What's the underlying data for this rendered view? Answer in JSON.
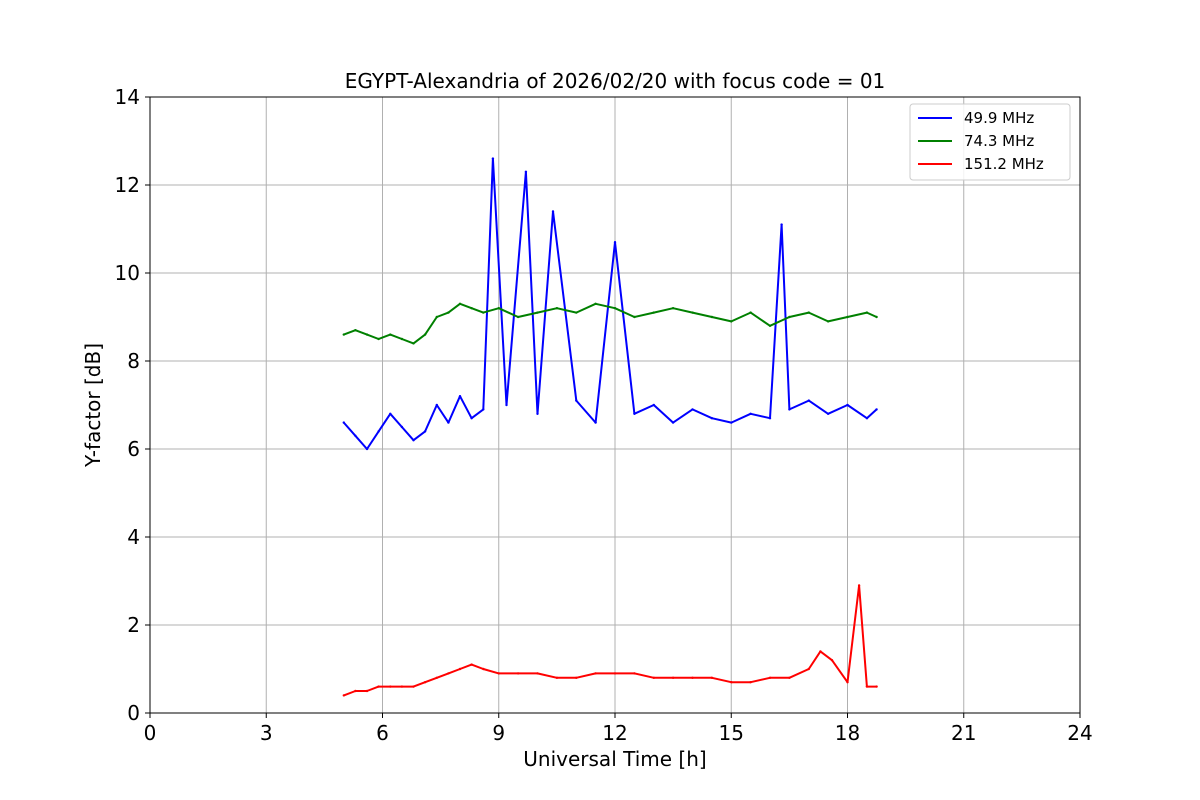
{
  "chart_data": {
    "type": "line",
    "title": "EGYPT-Alexandria of 2026/02/20 with focus code = 01",
    "xlabel": "Universal Time [h]",
    "ylabel": "Y-factor [dB]",
    "xlim": [
      0,
      24
    ],
    "ylim": [
      0,
      14
    ],
    "xticks": [
      0,
      3,
      6,
      9,
      12,
      15,
      18,
      21,
      24
    ],
    "yticks": [
      0,
      2,
      4,
      6,
      8,
      10,
      12,
      14
    ],
    "grid": true,
    "legend_position": "top-right",
    "series": [
      {
        "name": "49.9 MHz",
        "color": "#0000ff",
        "x": [
          5.0,
          5.3,
          5.6,
          5.9,
          6.2,
          6.5,
          6.8,
          7.1,
          7.4,
          7.7,
          8.0,
          8.3,
          8.6,
          8.85,
          9.2,
          9.7,
          10.0,
          10.4,
          11.0,
          11.5,
          12.0,
          12.5,
          13.0,
          13.5,
          14.0,
          14.5,
          15.0,
          15.5,
          16.0,
          16.3,
          16.5,
          17.0,
          17.5,
          18.0,
          18.5,
          18.75
        ],
        "values": [
          6.6,
          6.3,
          6.0,
          6.4,
          6.8,
          6.5,
          6.2,
          6.4,
          7.0,
          6.6,
          7.2,
          6.7,
          6.9,
          12.6,
          7.0,
          12.3,
          6.8,
          11.4,
          7.1,
          6.6,
          10.7,
          6.8,
          7.0,
          6.6,
          6.9,
          6.7,
          6.6,
          6.8,
          6.7,
          11.1,
          6.9,
          7.1,
          6.8,
          7.0,
          6.7,
          6.9
        ]
      },
      {
        "name": "74.3 MHz",
        "color": "#008000",
        "x": [
          5.0,
          5.3,
          5.6,
          5.9,
          6.2,
          6.5,
          6.8,
          7.1,
          7.4,
          7.7,
          8.0,
          8.3,
          8.6,
          9.0,
          9.5,
          10.0,
          10.5,
          11.0,
          11.5,
          12.0,
          12.5,
          13.0,
          13.5,
          14.0,
          14.5,
          15.0,
          15.5,
          16.0,
          16.5,
          17.0,
          17.5,
          18.0,
          18.5,
          18.75
        ],
        "values": [
          8.6,
          8.7,
          8.6,
          8.5,
          8.6,
          8.5,
          8.4,
          8.6,
          9.0,
          9.1,
          9.3,
          9.2,
          9.1,
          9.2,
          9.0,
          9.1,
          9.2,
          9.1,
          9.3,
          9.2,
          9.0,
          9.1,
          9.2,
          9.1,
          9.0,
          8.9,
          9.1,
          8.8,
          9.0,
          9.1,
          8.9,
          9.0,
          9.1,
          9.0
        ]
      },
      {
        "name": "151.2 MHz",
        "color": "#ff0000",
        "x": [
          5.0,
          5.3,
          5.6,
          5.9,
          6.2,
          6.5,
          6.8,
          7.1,
          7.4,
          7.7,
          8.0,
          8.3,
          8.6,
          9.0,
          9.5,
          10.0,
          10.5,
          11.0,
          11.5,
          12.0,
          12.5,
          13.0,
          13.5,
          14.0,
          14.5,
          15.0,
          15.5,
          16.0,
          16.5,
          17.0,
          17.3,
          17.6,
          18.0,
          18.3,
          18.5,
          18.75
        ],
        "values": [
          0.4,
          0.5,
          0.5,
          0.6,
          0.6,
          0.6,
          0.6,
          0.7,
          0.8,
          0.9,
          1.0,
          1.1,
          1.0,
          0.9,
          0.9,
          0.9,
          0.8,
          0.8,
          0.9,
          0.9,
          0.9,
          0.8,
          0.8,
          0.8,
          0.8,
          0.7,
          0.7,
          0.8,
          0.8,
          1.0,
          1.4,
          1.2,
          0.7,
          2.9,
          0.6,
          0.6
        ]
      }
    ]
  }
}
